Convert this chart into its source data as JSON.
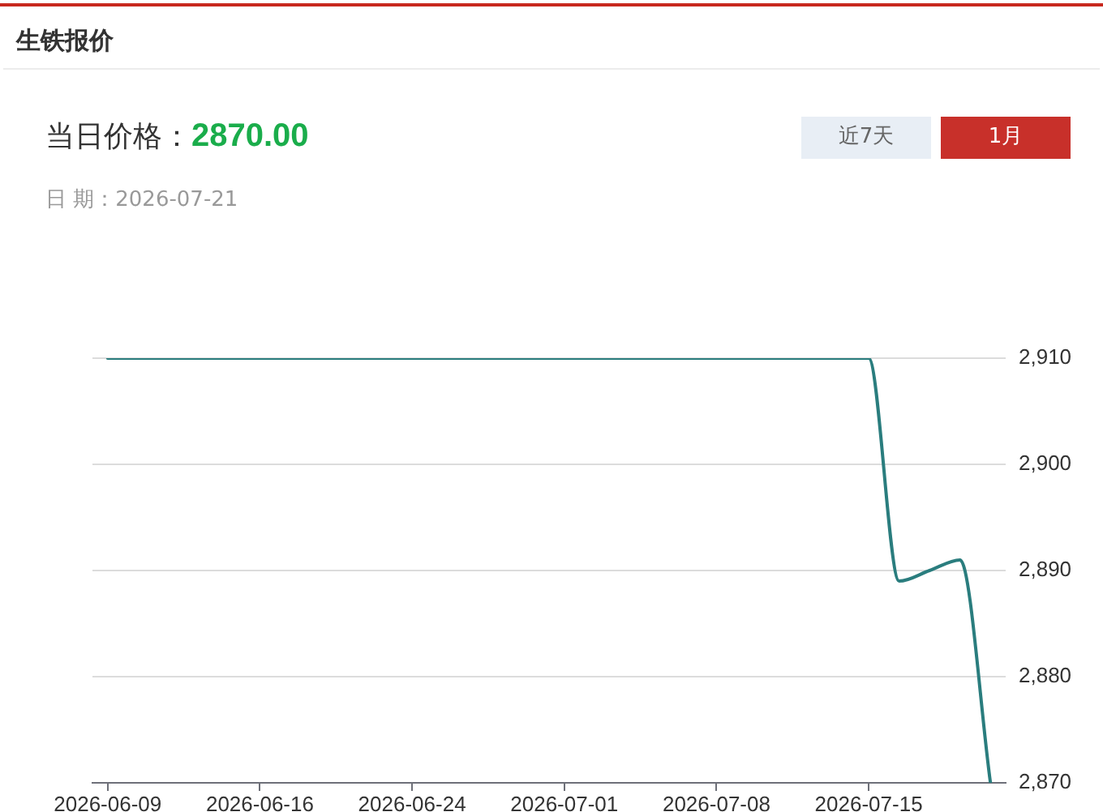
{
  "chart_data": {
    "type": "line",
    "title": "生铁报价",
    "annotations": [
      "当日价格：",
      "2870.00",
      "日 期：2026-07-21",
      "近7天",
      "1月"
    ],
    "categories": [
      "2026-06-09",
      null,
      null,
      null,
      null,
      "2026-06-16",
      null,
      null,
      null,
      null,
      "2026-06-24",
      null,
      null,
      null,
      null,
      "2026-07-01",
      null,
      null,
      null,
      null,
      "2026-07-08",
      null,
      null,
      null,
      null,
      "2026-07-15",
      null,
      null,
      null,
      null
    ],
    "series": [
      {
        "color": "#2a7d7e",
        "values": [
          2910,
          2910,
          2910,
          2910,
          2910,
          2910,
          2910,
          2910,
          2910,
          2910,
          2910,
          2910,
          2910,
          2910,
          2910,
          2910,
          2910,
          2910,
          2910,
          2910,
          2910,
          2910,
          2910,
          2910,
          2910,
          2910,
          2889,
          2890,
          2891,
          2870
        ]
      }
    ],
    "ylim": [
      2870,
      2910
    ],
    "yticks": [
      {
        "value": 2870,
        "label": "2,870"
      },
      {
        "value": 2880,
        "label": "2,880"
      },
      {
        "value": 2890,
        "label": "2,890"
      },
      {
        "value": 2900,
        "label": "2,900"
      },
      {
        "value": 2910,
        "label": "2,910"
      }
    ],
    "grid": "y",
    "marker": "none",
    "line_style": "solid"
  }
}
